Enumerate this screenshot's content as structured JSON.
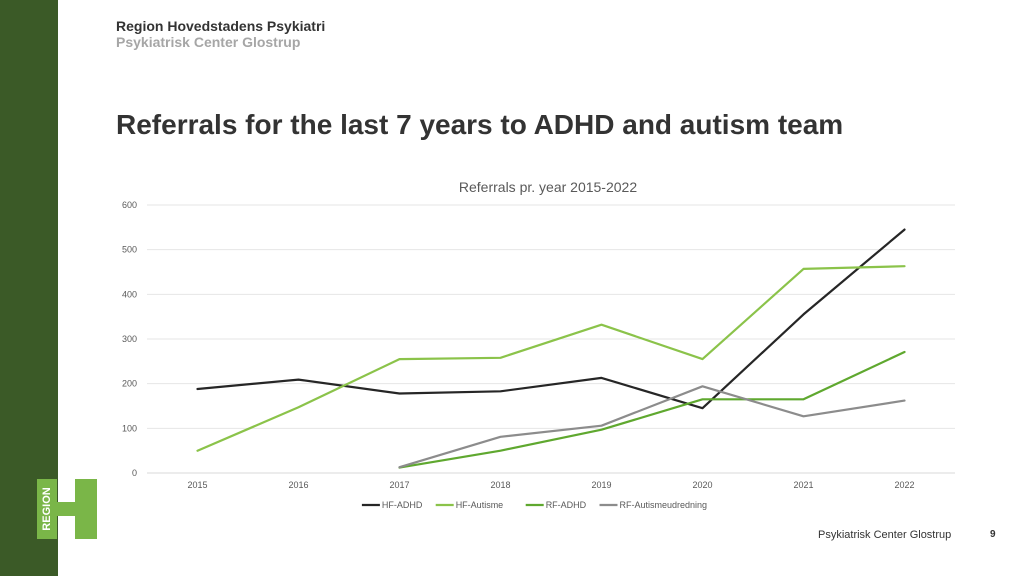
{
  "header": {
    "org_name": "Region Hovedstadens Psykiatri",
    "org_sub": "Psykiatrisk Center Glostrup"
  },
  "slide": {
    "title": "Referrals for the last 7 years to ADHD and autism team"
  },
  "footer": {
    "text": "Psykiatrisk Center Glostrup",
    "page_number": "9"
  },
  "logo": {
    "text": "REGION",
    "color": "#7ab648"
  },
  "chart_data": {
    "type": "line",
    "title": "Referrals pr. year 2015-2022",
    "xlabel": "",
    "ylabel": "",
    "categories": [
      "2015",
      "2016",
      "2017",
      "2018",
      "2019",
      "2020",
      "2021",
      "2022"
    ],
    "ylim": [
      0,
      600
    ],
    "yticks": [
      0,
      100,
      200,
      300,
      400,
      500,
      600
    ],
    "grid": true,
    "legend_position": "bottom",
    "series": [
      {
        "name": "HF-ADHD",
        "color": "#262626",
        "values": [
          188,
          209,
          178,
          183,
          213,
          145,
          355,
          545
        ]
      },
      {
        "name": "HF-Autisme",
        "color": "#8bc34a",
        "values": [
          50,
          147,
          255,
          258,
          332,
          255,
          457,
          463
        ]
      },
      {
        "name": "RF-ADHD",
        "color": "#5fa82f",
        "values": [
          null,
          null,
          12,
          50,
          97,
          165,
          165,
          271
        ]
      },
      {
        "name": "RF-Autismeudredning",
        "color": "#8c8c8c",
        "values": [
          null,
          null,
          13,
          81,
          106,
          194,
          127,
          162
        ]
      }
    ]
  }
}
